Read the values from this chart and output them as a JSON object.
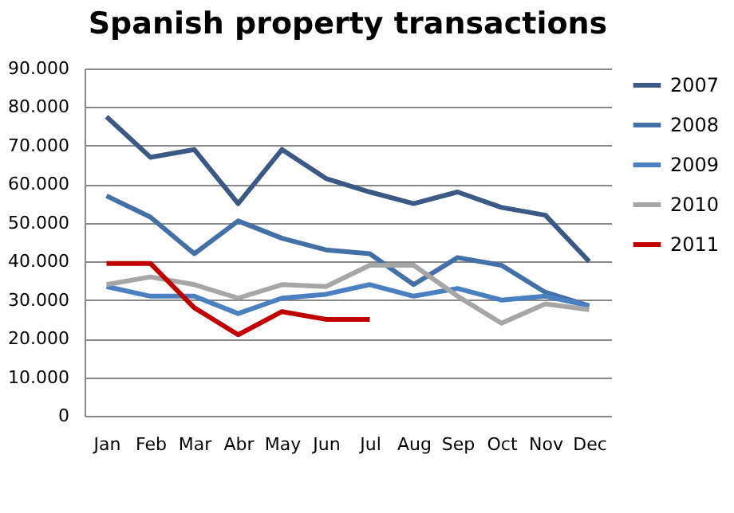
{
  "chart_data": {
    "type": "line",
    "title": "Spanish property transactions",
    "categories": [
      "Jan",
      "Feb",
      "Mar",
      "Abr",
      "May",
      "Jun",
      "Jul",
      "Aug",
      "Sep",
      "Oct",
      "Nov",
      "Dec"
    ],
    "series": [
      {
        "name": "2007",
        "color": "#3a5a85",
        "values": [
          77500,
          67000,
          69000,
          55000,
          69000,
          61500,
          58000,
          55000,
          58000,
          54000,
          52000,
          40000
        ]
      },
      {
        "name": "2008",
        "color": "#4470a8",
        "values": [
          57000,
          51500,
          42000,
          50500,
          46000,
          43000,
          42000,
          34000,
          41000,
          39000,
          32000,
          28500
        ]
      },
      {
        "name": "2009",
        "color": "#4a80c0",
        "values": [
          33500,
          31000,
          31000,
          26500,
          30500,
          31500,
          34000,
          31000,
          33000,
          30000,
          31000,
          28500
        ]
      },
      {
        "name": "2010",
        "color": "#a6a6a6",
        "values": [
          34000,
          36000,
          34000,
          30500,
          34000,
          33500,
          39000,
          39000,
          31000,
          24000,
          29000,
          27500
        ]
      },
      {
        "name": "2011",
        "color": "#c00000",
        "values": [
          39500,
          39500,
          28000,
          21000,
          27000,
          25000,
          25000,
          null,
          null,
          null,
          null,
          null
        ]
      }
    ],
    "ylim": [
      0,
      90000
    ],
    "yticks": [
      {
        "value": 0,
        "label": "0"
      },
      {
        "value": 10000,
        "label": "10.000"
      },
      {
        "value": 20000,
        "label": "20.000"
      },
      {
        "value": 30000,
        "label": "30.000"
      },
      {
        "value": 40000,
        "label": "40.000"
      },
      {
        "value": 50000,
        "label": "50.000"
      },
      {
        "value": 60000,
        "label": "60.000"
      },
      {
        "value": 70000,
        "label": "70.000"
      },
      {
        "value": 80000,
        "label": "80.000"
      },
      {
        "value": 90000,
        "label": "90.000"
      }
    ],
    "grid": "y",
    "legend": "right",
    "marker": "none",
    "line_style": "solid"
  }
}
